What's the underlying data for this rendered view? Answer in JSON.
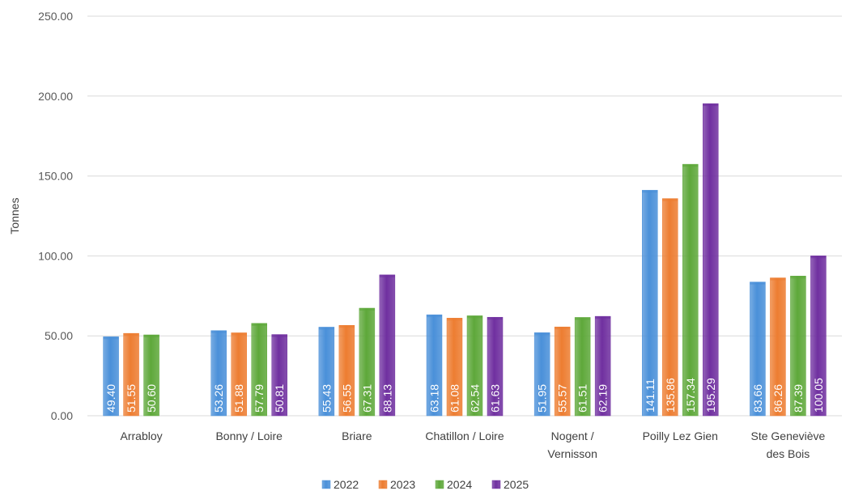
{
  "chart_data": {
    "type": "bar",
    "ylabel": "Tonnes",
    "ylim": [
      0,
      250
    ],
    "yticks": [
      "0.00",
      "50.00",
      "100.00",
      "150.00",
      "200.00",
      "250.00"
    ],
    "grid": true,
    "legend_position": "bottom",
    "categories": [
      [
        "Arrabloy"
      ],
      [
        "Bonny / Loire"
      ],
      [
        "Briare"
      ],
      [
        "Chatillon / Loire"
      ],
      [
        "Nogent /",
        "Vernisson"
      ],
      [
        "Poilly Lez Gien"
      ],
      [
        "Ste Geneviève",
        "des Bois"
      ]
    ],
    "series": [
      {
        "name": "2022",
        "color": "#4a90d9",
        "values": [
          49.4,
          53.26,
          55.43,
          63.18,
          51.95,
          141.11,
          83.66
        ],
        "labels": [
          "49.40",
          "53.26",
          "55.43",
          "63.18",
          "51.95",
          "141.11",
          "83.66"
        ]
      },
      {
        "name": "2023",
        "color": "#ed7d31",
        "values": [
          51.55,
          51.88,
          56.55,
          61.08,
          55.57,
          135.86,
          86.26
        ],
        "labels": [
          "51.55",
          "51.88",
          "56.55",
          "61.08",
          "55.57",
          "135.86",
          "86.26"
        ]
      },
      {
        "name": "2024",
        "color": "#5ea83a",
        "values": [
          50.6,
          57.79,
          67.31,
          62.54,
          61.51,
          157.34,
          87.39
        ],
        "labels": [
          "50.60",
          "57.79",
          "67.31",
          "62.54",
          "61.51",
          "157.34",
          "87.39"
        ]
      },
      {
        "name": "2025",
        "color": "#7030a0",
        "values": [
          null,
          50.81,
          88.13,
          61.63,
          62.19,
          195.29,
          100.05
        ],
        "labels": [
          null,
          "50.81",
          "88.13",
          "61.63",
          "62.19",
          "195.29",
          "100.05"
        ]
      }
    ]
  }
}
